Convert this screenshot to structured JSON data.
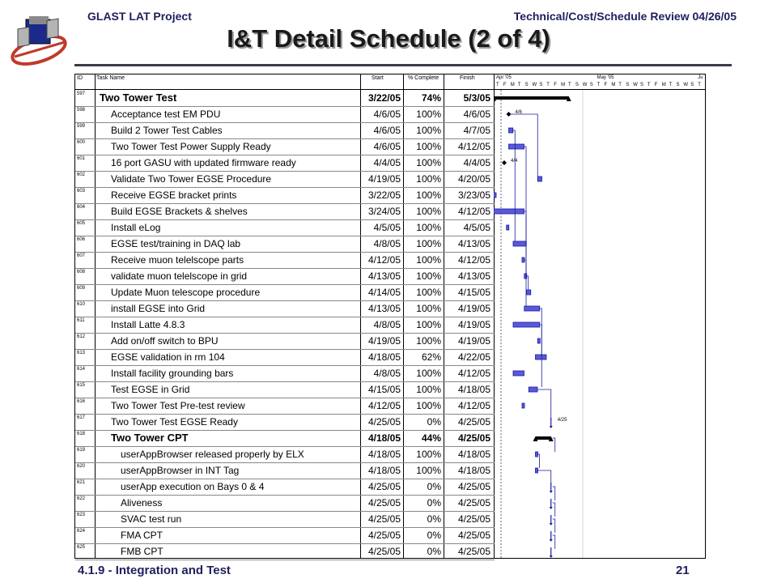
{
  "header": {
    "left": "GLAST LAT Project",
    "right": "Technical/Cost/Schedule Review 04/26/05",
    "title": "I&T Detail Schedule (2 of 4)"
  },
  "footer": {
    "left": "4.1.9 - Integration and Test",
    "page": "21"
  },
  "colors": {
    "bar": "#1a1aa0",
    "bar_fill": "#5a5ad8",
    "summary": "#000000",
    "header_text": "#1f1f5f"
  },
  "table": {
    "columns": [
      "ID",
      "Task Name",
      "Start",
      "% Complete",
      "Finish"
    ],
    "timeline": {
      "months": [
        "Apr '05",
        "May '05",
        "Ju"
      ],
      "days": [
        "T",
        "F",
        "M",
        "T",
        "S",
        "W",
        "S",
        "T",
        "F",
        "M",
        "T",
        "S",
        "W",
        "S",
        "T",
        "F",
        "M",
        "T",
        "S",
        "W",
        "S",
        "T",
        "F",
        "M",
        "T",
        "S",
        "W",
        "S",
        "T"
      ]
    },
    "rows": [
      {
        "id": "597",
        "name": "Two Tower Test",
        "start": "3/22/05",
        "pct": "74%",
        "finish": "5/3/05",
        "level": 0,
        "summary": true
      },
      {
        "id": "598",
        "name": "Acceptance test EM PDU",
        "start": "4/6/05",
        "pct": "100%",
        "finish": "4/6/05",
        "level": 1
      },
      {
        "id": "599",
        "name": "Build 2 Tower Test Cables",
        "start": "4/6/05",
        "pct": "100%",
        "finish": "4/7/05",
        "level": 1
      },
      {
        "id": "600",
        "name": "Two Tower Test Power Supply Ready",
        "start": "4/6/05",
        "pct": "100%",
        "finish": "4/12/05",
        "level": 1
      },
      {
        "id": "601",
        "name": "16 port GASU with updated firmware ready",
        "start": "4/4/05",
        "pct": "100%",
        "finish": "4/4/05",
        "level": 1
      },
      {
        "id": "602",
        "name": "Validate Two Tower EGSE Procedure",
        "start": "4/19/05",
        "pct": "100%",
        "finish": "4/20/05",
        "level": 1
      },
      {
        "id": "603",
        "name": "Receive EGSE bracket prints",
        "start": "3/22/05",
        "pct": "100%",
        "finish": "3/23/05",
        "level": 1
      },
      {
        "id": "604",
        "name": "Build EGSE Brackets & shelves",
        "start": "3/24/05",
        "pct": "100%",
        "finish": "4/12/05",
        "level": 1
      },
      {
        "id": "605",
        "name": "Install eLog",
        "start": "4/5/05",
        "pct": "100%",
        "finish": "4/5/05",
        "level": 1
      },
      {
        "id": "606",
        "name": "EGSE test/training in DAQ lab",
        "start": "4/8/05",
        "pct": "100%",
        "finish": "4/13/05",
        "level": 1
      },
      {
        "id": "607",
        "name": "Receive muon telelscope parts",
        "start": "4/12/05",
        "pct": "100%",
        "finish": "4/12/05",
        "level": 1
      },
      {
        "id": "608",
        "name": "validate muon telelscope in grid",
        "start": "4/13/05",
        "pct": "100%",
        "finish": "4/13/05",
        "level": 1
      },
      {
        "id": "609",
        "name": "Update Muon telescope procedure",
        "start": "4/14/05",
        "pct": "100%",
        "finish": "4/15/05",
        "level": 1
      },
      {
        "id": "610",
        "name": "install EGSE into Grid",
        "start": "4/13/05",
        "pct": "100%",
        "finish": "4/19/05",
        "level": 1
      },
      {
        "id": "611",
        "name": "Install Latte 4.8.3",
        "start": "4/8/05",
        "pct": "100%",
        "finish": "4/19/05",
        "level": 1
      },
      {
        "id": "612",
        "name": "Add on/off switch to BPU",
        "start": "4/19/05",
        "pct": "100%",
        "finish": "4/19/05",
        "level": 1
      },
      {
        "id": "613",
        "name": "EGSE validation in rm 104",
        "start": "4/18/05",
        "pct": "62%",
        "finish": "4/22/05",
        "level": 1
      },
      {
        "id": "614",
        "name": "Install facility grounding bars",
        "start": "4/8/05",
        "pct": "100%",
        "finish": "4/12/05",
        "level": 1
      },
      {
        "id": "615",
        "name": "Test EGSE in Grid",
        "start": "4/15/05",
        "pct": "100%",
        "finish": "4/18/05",
        "level": 1
      },
      {
        "id": "616",
        "name": "Two Tower Test Pre-test review",
        "start": "4/12/05",
        "pct": "100%",
        "finish": "4/12/05",
        "level": 1
      },
      {
        "id": "617",
        "name": "Two Tower Test EGSE Ready",
        "start": "4/25/05",
        "pct": "0%",
        "finish": "4/25/05",
        "level": 1
      },
      {
        "id": "618",
        "name": "Two Tower CPT",
        "start": "4/18/05",
        "pct": "44%",
        "finish": "4/25/05",
        "level": 1,
        "summary": true
      },
      {
        "id": "619",
        "name": "userAppBrowser released properly by ELX",
        "start": "4/18/05",
        "pct": "100%",
        "finish": "4/18/05",
        "level": 2
      },
      {
        "id": "620",
        "name": "userAppBrowser in INT Tag",
        "start": "4/18/05",
        "pct": "100%",
        "finish": "4/18/05",
        "level": 2
      },
      {
        "id": "621",
        "name": "userApp execution on Bays 0 & 4",
        "start": "4/25/05",
        "pct": "0%",
        "finish": "4/25/05",
        "level": 2
      },
      {
        "id": "622",
        "name": "Aliveness",
        "start": "4/25/05",
        "pct": "0%",
        "finish": "4/25/05",
        "level": 2
      },
      {
        "id": "623",
        "name": "SVAC test run",
        "start": "4/25/05",
        "pct": "0%",
        "finish": "4/25/05",
        "level": 2
      },
      {
        "id": "624",
        "name": "FMA CPT",
        "start": "4/25/05",
        "pct": "0%",
        "finish": "4/25/05",
        "level": 2
      },
      {
        "id": "625",
        "name": "FMB CPT",
        "start": "4/25/05",
        "pct": "0%",
        "finish": "4/25/05",
        "level": 2
      }
    ],
    "milestone_labels": [
      {
        "row": 1,
        "text": "4/6"
      },
      {
        "row": 4,
        "text": "4/4"
      },
      {
        "row": 20,
        "text": "4/25"
      }
    ]
  }
}
